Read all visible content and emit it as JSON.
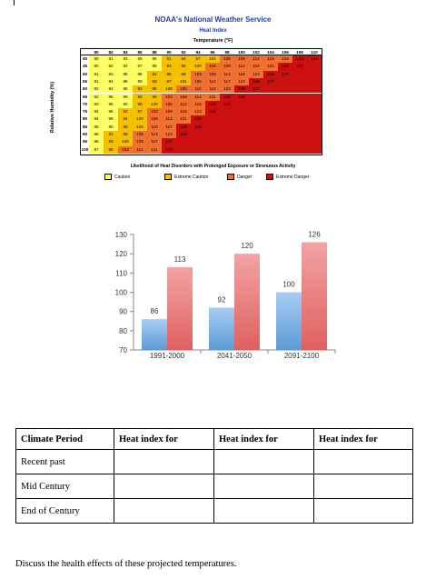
{
  "noaa_chart": {
    "title": "NOAA's National Weather Service",
    "subtitle": "Heat Index",
    "temp_axis_label": "Temperature (°F)",
    "humidity_axis_label": "Relative Humidity (%)",
    "temperatures": [
      "80",
      "82",
      "84",
      "86",
      "88",
      "90",
      "92",
      "94",
      "96",
      "98",
      "100",
      "102",
      "104",
      "106",
      "108",
      "110"
    ],
    "rows": [
      {
        "rh": "40",
        "vals": [
          "80",
          "81",
          "83",
          "85",
          "88",
          "91",
          "94",
          "97",
          "101",
          "105",
          "109",
          "114",
          "119",
          "124",
          "130",
          "136"
        ]
      },
      {
        "rh": "45",
        "vals": [
          "80",
          "82",
          "84",
          "87",
          "89",
          "93",
          "96",
          "100",
          "104",
          "109",
          "114",
          "119",
          "124",
          "130",
          "137",
          ""
        ]
      },
      {
        "rh": "50",
        "vals": [
          "81",
          "83",
          "85",
          "88",
          "91",
          "95",
          "99",
          "103",
          "108",
          "113",
          "118",
          "124",
          "131",
          "137",
          "",
          ""
        ]
      },
      {
        "rh": "55",
        "vals": [
          "81",
          "84",
          "86",
          "89",
          "93",
          "97",
          "101",
          "106",
          "112",
          "117",
          "124",
          "130",
          "137",
          "",
          "",
          ""
        ]
      },
      {
        "rh": "60",
        "vals": [
          "82",
          "84",
          "88",
          "91",
          "95",
          "100",
          "105",
          "110",
          "116",
          "123",
          "129",
          "137",
          "",
          "",
          "",
          ""
        ]
      },
      {
        "rh": "65",
        "vals": [
          "82",
          "85",
          "89",
          "93",
          "98",
          "103",
          "108",
          "114",
          "121",
          "128",
          "136",
          "",
          "",
          "",
          "",
          ""
        ]
      },
      {
        "rh": "70",
        "vals": [
          "83",
          "86",
          "90",
          "95",
          "100",
          "105",
          "112",
          "119",
          "126",
          "134",
          "",
          "",
          "",
          "",
          "",
          ""
        ]
      },
      {
        "rh": "75",
        "vals": [
          "84",
          "88",
          "92",
          "97",
          "103",
          "109",
          "116",
          "124",
          "132",
          "",
          "",
          "",
          "",
          "",
          "",
          ""
        ]
      },
      {
        "rh": "80",
        "vals": [
          "84",
          "89",
          "94",
          "100",
          "106",
          "113",
          "121",
          "129",
          "",
          "",
          "",
          "",
          "",
          "",
          "",
          ""
        ]
      },
      {
        "rh": "85",
        "vals": [
          "85",
          "90",
          "96",
          "102",
          "110",
          "117",
          "126",
          "135",
          "",
          "",
          "",
          "",
          "",
          "",
          "",
          ""
        ]
      },
      {
        "rh": "90",
        "vals": [
          "86",
          "91",
          "98",
          "105",
          "113",
          "122",
          "131",
          "",
          "",
          "",
          "",
          "",
          "",
          "",
          "",
          ""
        ]
      },
      {
        "rh": "95",
        "vals": [
          "86",
          "93",
          "100",
          "108",
          "117",
          "127",
          "",
          "",
          "",
          "",
          "",
          "",
          "",
          "",
          "",
          ""
        ]
      },
      {
        "rh": "100",
        "vals": [
          "87",
          "95",
          "103",
          "112",
          "121",
          "132",
          "",
          "",
          "",
          "",
          "",
          "",
          "",
          "",
          "",
          ""
        ]
      }
    ],
    "caption": "Likelihood of Heat Disorders with Prolonged Exposure or Strenuous Activity",
    "legend": [
      {
        "label": "Caution",
        "color": "#ffff66"
      },
      {
        "label": "Extreme Caution",
        "color": "#f5c000"
      },
      {
        "label": "Danger",
        "color": "#f07030"
      },
      {
        "label": "Extreme Danger",
        "color": "#cc1010"
      }
    ]
  },
  "chart_data": {
    "type": "bar",
    "categories": [
      "1991-2000",
      "2041-2050",
      "2091-2100"
    ],
    "series": [
      {
        "values": [
          86,
          92,
          100
        ],
        "color": "#5b9bd5"
      },
      {
        "values": [
          113,
          120,
          126
        ],
        "color": "#e06060"
      }
    ],
    "ylim": [
      70,
      130
    ],
    "yticks": [
      70,
      80,
      90,
      100,
      110,
      120,
      130
    ],
    "grid": false,
    "title": "",
    "xlabel": "",
    "ylabel": ""
  },
  "worksheet": {
    "headers": [
      "Climate Period",
      "Heat index for",
      "Heat index for",
      "Heat index for"
    ],
    "rows": [
      "Recent past",
      "Mid Century",
      "End of Century"
    ],
    "question": "Discuss the health effects of these projected temperatures."
  }
}
